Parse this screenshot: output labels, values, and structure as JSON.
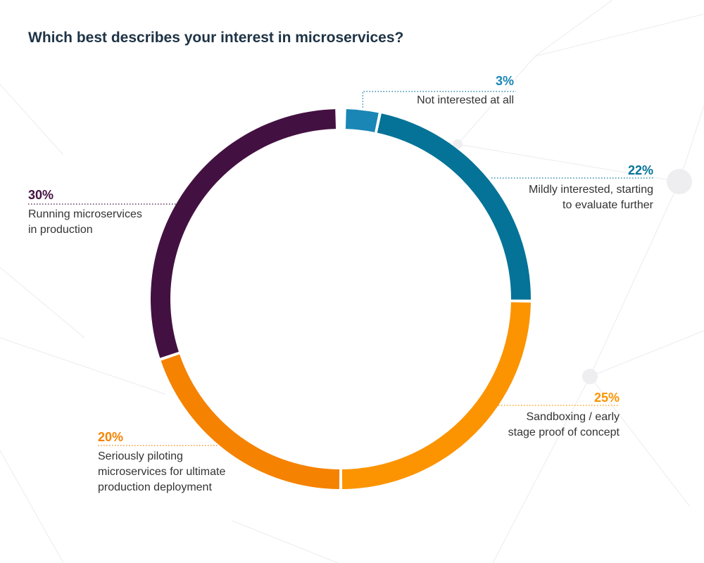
{
  "title": "Which best describes your interest in microservices?",
  "chart_data": {
    "type": "pie",
    "style": "donut",
    "title": "Which best describes your interest in microservices?",
    "categories": [
      "Not interested at all",
      "Mildly interested, starting to evaluate further",
      "Sandboxing / early stage proof of concept",
      "Seriously piloting microservices for ultimate production deployment",
      "Running microservices in production"
    ],
    "values": [
      3,
      22,
      25,
      20,
      30
    ],
    "labels": [
      "3%",
      "22%",
      "25%",
      "20%",
      "30%"
    ],
    "desc_lines": [
      [
        "Not interested at all"
      ],
      [
        "Mildly interested, starting",
        "to evaluate further"
      ],
      [
        "Sandboxing / early",
        "stage proof of concept"
      ],
      [
        "Seriously piloting",
        "microservices for ultimate",
        "production deployment"
      ],
      [
        "Running microservices",
        "in production"
      ]
    ],
    "colors": [
      "#1a86b5",
      "#047397",
      "#fb9400",
      "#f58200",
      "#431141"
    ],
    "legend": "none",
    "start": "top, clockwise"
  }
}
